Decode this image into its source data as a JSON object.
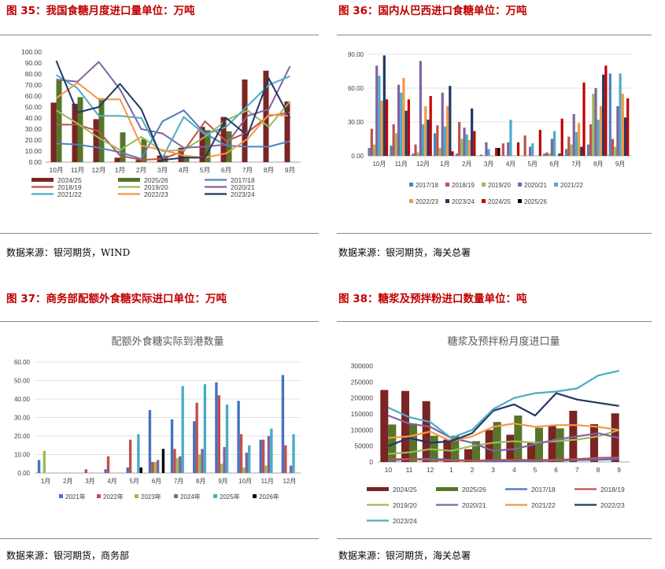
{
  "panels": [
    {
      "title": "图 35：我国食糖月度进口量单位：万吨",
      "source": "数据来源：银河期货，WIND"
    },
    {
      "title": "图 36：国内从巴西进口食糖单位：万吨",
      "source": "数据来源：银河期货，海关总署"
    },
    {
      "title": "图 37：商务部配额外食糖实际进口单位：万吨",
      "source": "数据来源：银河期货，商务部"
    },
    {
      "title": "图 38：糖浆及预拌粉进口数量单位：吨",
      "source": "数据来源：银河期货，海关总署"
    }
  ],
  "chart_data": [
    {
      "type": "bar+line",
      "title": "",
      "categories": [
        "10月",
        "11月",
        "12月",
        "1月",
        "2月",
        "3月",
        "4月",
        "5月",
        "6月",
        "7月",
        "8月",
        "9月"
      ],
      "yticks": [
        "0.00",
        "10.00",
        "20.00",
        "30.00",
        "40.00",
        "50.00",
        "60.00",
        "70.00",
        "80.00",
        "90.00",
        "100.00"
      ],
      "ylim": [
        0,
        100
      ],
      "bars": [
        {
          "name": "2024/25",
          "color": "#7b2424",
          "values": [
            54,
            53,
            39,
            4,
            2,
            6,
            13,
            32,
            41,
            75,
            83,
            55
          ]
        },
        {
          "name": "2025/26",
          "color": "#56752a",
          "values": [
            75,
            59,
            58,
            27,
            21,
            6,
            5,
            29,
            28,
            null,
            null,
            null
          ]
        }
      ],
      "lines": [
        {
          "name": "2017/18",
          "color": "#4f81bd",
          "values": [
            17,
            16,
            13,
            9,
            3,
            37,
            47,
            26,
            15,
            14,
            14,
            19
          ]
        },
        {
          "name": "2018/19",
          "color": "#c0504d",
          "values": [
            34,
            34,
            28,
            6,
            2,
            3,
            10,
            37,
            19,
            27,
            42,
            45
          ]
        },
        {
          "name": "2019/20",
          "color": "#9bbb59",
          "values": [
            47,
            35,
            22,
            11,
            23,
            10,
            11,
            23,
            38,
            47,
            32,
            55
          ]
        },
        {
          "name": "2020/21",
          "color": "#8064a2",
          "values": [
            75,
            73,
            91,
            66,
            30,
            26,
            13,
            14,
            16,
            42,
            48,
            87
          ]
        },
        {
          "name": "2021/22",
          "color": "#4bacc6",
          "values": [
            79,
            67,
            42,
            42,
            40,
            4,
            41,
            25,
            32,
            51,
            70,
            78
          ]
        },
        {
          "name": "2022/23",
          "color": "#f79646",
          "values": [
            58,
            72,
            57,
            57,
            15,
            11,
            6,
            4,
            8,
            21,
            43,
            42
          ]
        },
        {
          "name": "2023/24",
          "color": "#1f3864",
          "values": [
            92,
            45,
            50,
            71,
            48,
            2,
            4,
            4,
            40,
            24,
            76,
            40
          ]
        }
      ]
    },
    {
      "type": "bar",
      "title": "",
      "categories": [
        "10月",
        "11月",
        "12月",
        "1月",
        "2月",
        "3月",
        "4月",
        "5月",
        "6月",
        "7月",
        "8月",
        "9月"
      ],
      "yticks": [
        "0.00",
        "30.00",
        "60.00",
        "90.00"
      ],
      "ylim": [
        0,
        90
      ],
      "series": [
        {
          "name": "2017/18",
          "color": "#4f81bd",
          "values": [
            7,
            9,
            2,
            20,
            2,
            0,
            0,
            0,
            2,
            6,
            10,
            73
          ]
        },
        {
          "name": "2018/19",
          "color": "#c0504d",
          "values": [
            24,
            28,
            10,
            27,
            30,
            1,
            11,
            18,
            3,
            17,
            28,
            15
          ]
        },
        {
          "name": "2019/20",
          "color": "#9bbb59",
          "values": [
            10,
            20,
            3,
            7,
            15,
            0,
            0,
            0,
            2,
            10,
            55,
            8
          ]
        },
        {
          "name": "2020/21",
          "color": "#8064a2",
          "values": [
            80,
            63,
            84,
            56,
            25,
            12,
            12,
            8,
            15,
            37,
            60,
            44
          ]
        },
        {
          "name": "2021/22",
          "color": "#4bacc6",
          "values": [
            71,
            56,
            28,
            26,
            19,
            6,
            32,
            11,
            22,
            21,
            32,
            73
          ]
        },
        {
          "name": "2022/23",
          "color": "#f79646",
          "values": [
            49,
            69,
            44,
            44,
            14,
            0,
            0,
            0,
            0,
            29,
            44,
            55
          ]
        },
        {
          "name": "2023/24",
          "color": "#1f3864",
          "values": [
            89,
            40,
            32,
            62,
            42,
            0,
            0,
            0,
            2,
            8,
            72,
            34
          ]
        },
        {
          "name": "2024/25",
          "color": "#c00000",
          "values": [
            50,
            50,
            53,
            4,
            22,
            7,
            12,
            23,
            33,
            65,
            80,
            51
          ]
        },
        {
          "name": "2025/26",
          "color": "#000000",
          "values": [
            null,
            null,
            null,
            null,
            null,
            7,
            null,
            null,
            null,
            null,
            null,
            null
          ]
        }
      ]
    },
    {
      "type": "bar",
      "title": "配额外食糖实际到港数量",
      "categories": [
        "1月",
        "2月",
        "3月",
        "4月",
        "5月",
        "6月",
        "7月",
        "8月",
        "9月",
        "10月",
        "11月",
        "12月"
      ],
      "yticks": [
        "0.00",
        "10.00",
        "20.00",
        "30.00",
        "40.00",
        "50.00",
        "60.00"
      ],
      "ylim": [
        0,
        60
      ],
      "series": [
        {
          "name": "2021年",
          "color": "#4472c4",
          "values": [
            7,
            0,
            0,
            2,
            3,
            34,
            29,
            28,
            49,
            39,
            18,
            53
          ]
        },
        {
          "name": "2022年",
          "color": "#c0504d",
          "values": [
            0,
            0,
            2,
            9,
            18,
            6,
            13,
            38,
            42,
            21,
            18,
            15
          ]
        },
        {
          "name": "2023年",
          "color": "#9bbb59",
          "values": [
            12,
            0,
            0,
            0,
            0,
            6,
            8,
            10,
            5,
            3,
            4,
            0
          ]
        },
        {
          "name": "2024年",
          "color": "#8064a2",
          "values": [
            0,
            0,
            0,
            0,
            0,
            7,
            9,
            13,
            14,
            11,
            20,
            4
          ]
        },
        {
          "name": "2025年",
          "color": "#4bacc6",
          "values": [
            0,
            0,
            0,
            0,
            21,
            0,
            47,
            48,
            37,
            15,
            24,
            21
          ]
        },
        {
          "name": "2026年",
          "color": "#000000",
          "values": [
            0,
            0,
            0,
            0,
            3,
            13,
            0,
            0,
            0,
            0,
            0,
            0
          ]
        }
      ]
    },
    {
      "type": "bar+line",
      "title": "糖浆及预拌粉月度进口量",
      "categories": [
        "10",
        "11",
        "12",
        "1",
        "2",
        "3",
        "4",
        "5",
        "6",
        "7",
        "8",
        "9"
      ],
      "yticks": [
        "0",
        "50000",
        "100000",
        "150000",
        "200000",
        "250000",
        "300000"
      ],
      "ylim": [
        0,
        300000
      ],
      "bars": [
        {
          "name": "2024/25",
          "color": "#7b2424",
          "values": [
            225000,
            222000,
            190000,
            70000,
            40000,
            100000,
            85000,
            62000,
            113000,
            160000,
            118000,
            152000
          ]
        },
        {
          "name": "2025/26",
          "color": "#56752a",
          "values": [
            117000,
            120000,
            82000,
            82000,
            65000,
            125000,
            145000,
            107000,
            105000,
            null,
            null,
            null
          ]
        }
      ],
      "lines": [
        {
          "name": "2017/18",
          "color": "#4472c4",
          "values": [
            5000,
            8000,
            10000,
            7000,
            4000,
            2000,
            3000,
            3000,
            5000,
            6000,
            7000,
            9000
          ]
        },
        {
          "name": "2018/19",
          "color": "#c0504d",
          "values": [
            8000,
            9000,
            6000,
            5000,
            4000,
            6000,
            7000,
            6000,
            7000,
            9000,
            13000,
            14000
          ]
        },
        {
          "name": "2019/20",
          "color": "#9bbb59",
          "values": [
            25000,
            30000,
            40000,
            35000,
            50000,
            60000,
            65000,
            60000,
            65000,
            70000,
            80000,
            100000
          ]
        },
        {
          "name": "2020/21",
          "color": "#8064a2",
          "values": [
            145000,
            120000,
            110000,
            75000,
            60000,
            35000,
            40000,
            55000,
            70000,
            80000,
            90000,
            75000
          ]
        },
        {
          "name": "2021/22",
          "color": "#f79646",
          "values": [
            75000,
            80000,
            95000,
            65000,
            80000,
            110000,
            120000,
            110000,
            115000,
            115000,
            110000,
            100000
          ]
        },
        {
          "name": "2022/23",
          "color": "#1f3864",
          "values": [
            50000,
            75000,
            60000,
            65000,
            90000,
            160000,
            180000,
            145000,
            215000,
            195000,
            185000,
            175000
          ]
        },
        {
          "name": "2023/24",
          "color": "#4bacc6",
          "values": [
            170000,
            140000,
            125000,
            75000,
            100000,
            165000,
            200000,
            215000,
            220000,
            230000,
            270000,
            285000
          ]
        }
      ]
    }
  ]
}
